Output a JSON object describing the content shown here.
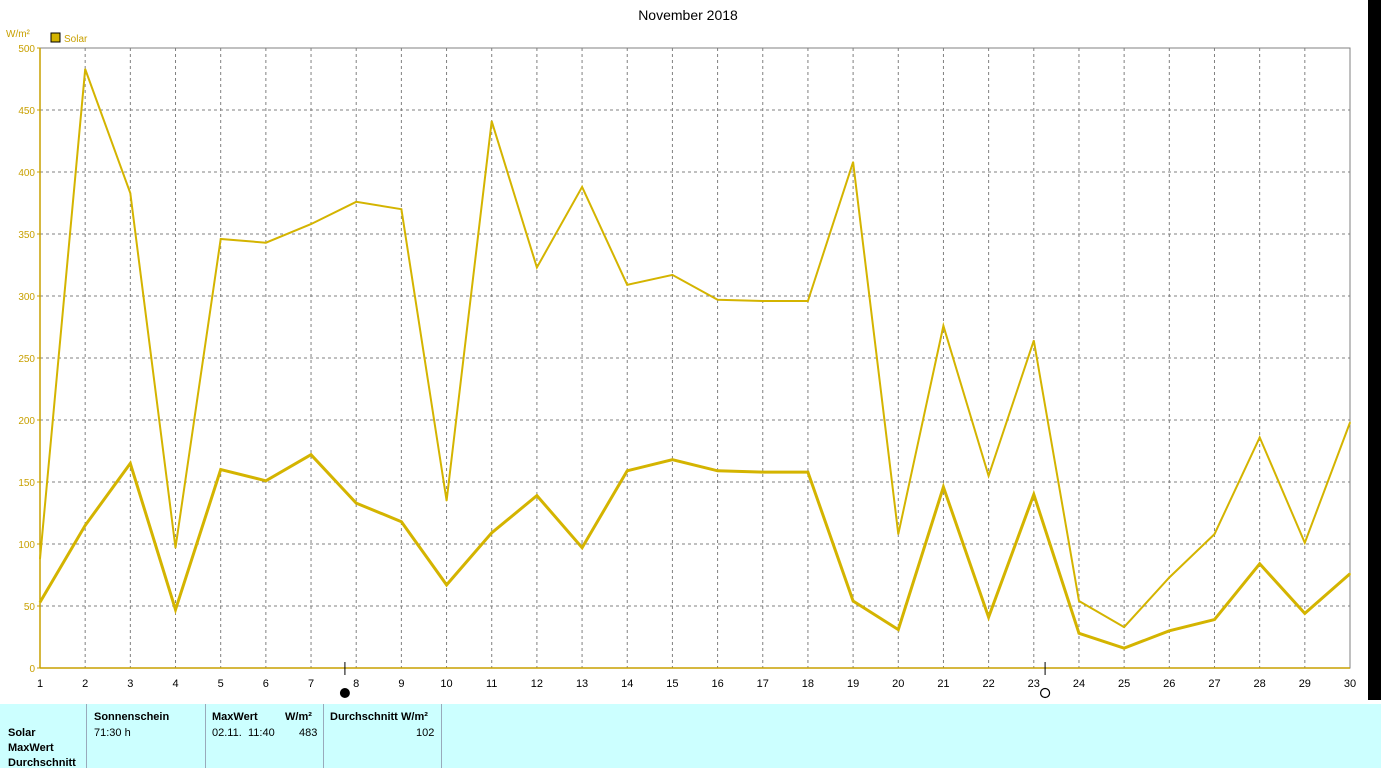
{
  "chart_data": {
    "type": "line",
    "title": "November 2018",
    "ylabel": "W/m²",
    "ylim": [
      0,
      500
    ],
    "yticks": [
      0,
      50,
      100,
      150,
      200,
      250,
      300,
      350,
      400,
      450,
      500
    ],
    "x": [
      1,
      2,
      3,
      4,
      5,
      6,
      7,
      8,
      9,
      10,
      11,
      12,
      13,
      14,
      15,
      16,
      17,
      18,
      19,
      20,
      21,
      22,
      23,
      24,
      25,
      26,
      27,
      28,
      29,
      30
    ],
    "grid": true,
    "legend_position": "top-left",
    "legend": [
      "Solar"
    ],
    "series_color": "#d4b400",
    "series": [
      {
        "name": "Solar",
        "line": "thin",
        "values": [
          88,
          483,
          383,
          97,
          346,
          343,
          358,
          376,
          370,
          135,
          441,
          323,
          388,
          309,
          317,
          297,
          296,
          296,
          408,
          108,
          276,
          155,
          264,
          54,
          33,
          73,
          108,
          186,
          101,
          198
        ]
      },
      {
        "name": "Solar",
        "line": "thick",
        "values": [
          53,
          115,
          165,
          47,
          160,
          151,
          172,
          133,
          118,
          67,
          109,
          139,
          97,
          159,
          168,
          159,
          158,
          158,
          54,
          31,
          146,
          41,
          140,
          28,
          16,
          30,
          39,
          84,
          44,
          76
        ]
      }
    ],
    "markers": [
      {
        "x": 7.75,
        "symbol": "full-moon"
      },
      {
        "x": 23.25,
        "symbol": "new-moon"
      }
    ]
  },
  "stats": {
    "row_labels": [
      "Solar",
      "MaxWert",
      "Durchschnitt"
    ],
    "sun_header": "Sonnenschein",
    "sun_value": "71:30 h",
    "max_header": "MaxWert",
    "max_unit": "W/m²",
    "max_date": "02.11.",
    "max_time": "11:40",
    "max_value": "483",
    "avg_header": "Durchschnitt",
    "avg_unit": "W/m²",
    "avg_value": "102"
  }
}
